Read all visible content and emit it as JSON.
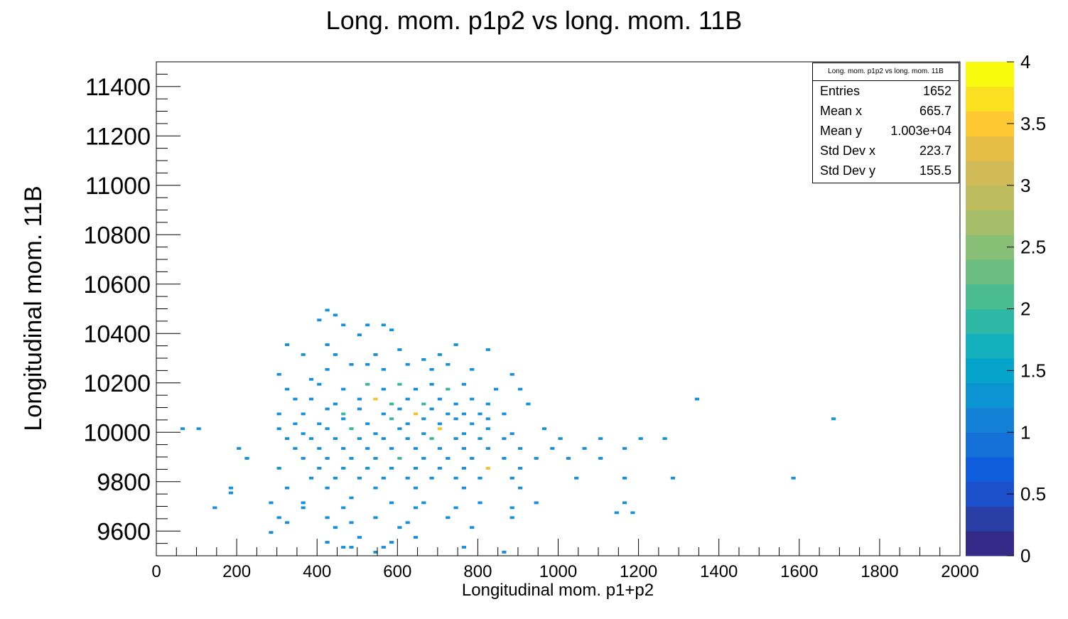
{
  "chart_data": {
    "type": "heatmap",
    "title": "Long.  mom. p1p2 vs long. mom. 11B",
    "xlabel": "Longitudinal mom. p1+p2",
    "ylabel": "Longitudinal mom. 11B",
    "xlim": [
      0,
      2000
    ],
    "ylim": [
      9500,
      11500
    ],
    "x_ticks": [
      0,
      200,
      400,
      600,
      800,
      1000,
      1200,
      1400,
      1600,
      1800,
      2000
    ],
    "y_ticks": [
      9600,
      9800,
      10000,
      10200,
      10400,
      10600,
      10800,
      11000,
      11200,
      11400
    ],
    "colorbar": {
      "min": 0,
      "max": 4,
      "ticks": [
        "0",
        "0.5",
        "1",
        "1.5",
        "2",
        "2.5",
        "3",
        "3.5",
        "4"
      ]
    },
    "stats": {
      "title": "Long.  mom. p1p2 vs long. mom. 11B",
      "rows": [
        {
          "label": "Entries",
          "value": "1652"
        },
        {
          "label": "Mean x",
          "value": "665.7"
        },
        {
          "label": "Mean y",
          "value": "1.003e+04"
        },
        {
          "label": "Std Dev x",
          "value": "223.7"
        },
        {
          "label": "Std Dev y",
          "value": "155.5"
        }
      ]
    },
    "bins": {
      "x_bin_width": 20,
      "y_bin_width": 20,
      "points": [
        [
          420,
          10480,
          1
        ],
        [
          440,
          10460,
          1
        ],
        [
          400,
          10440,
          1
        ],
        [
          460,
          10420,
          1
        ],
        [
          520,
          10420,
          1
        ],
        [
          560,
          10420,
          1
        ],
        [
          580,
          10400,
          1
        ],
        [
          500,
          10380,
          1
        ],
        [
          320,
          10340,
          1
        ],
        [
          420,
          10340,
          1
        ],
        [
          600,
          10320,
          1
        ],
        [
          740,
          10340,
          1
        ],
        [
          820,
          10320,
          1
        ],
        [
          360,
          10300,
          1
        ],
        [
          440,
          10300,
          1
        ],
        [
          540,
          10300,
          1
        ],
        [
          660,
          10280,
          1
        ],
        [
          700,
          10300,
          1
        ],
        [
          300,
          10220,
          1
        ],
        [
          380,
          10200,
          1
        ],
        [
          420,
          10240,
          1
        ],
        [
          480,
          10260,
          1
        ],
        [
          520,
          10260,
          1
        ],
        [
          560,
          10240,
          1
        ],
        [
          620,
          10260,
          1
        ],
        [
          680,
          10240,
          1
        ],
        [
          720,
          10260,
          1
        ],
        [
          780,
          10240,
          1
        ],
        [
          880,
          10220,
          1
        ],
        [
          320,
          10160,
          1
        ],
        [
          400,
          10180,
          1
        ],
        [
          460,
          10160,
          1
        ],
        [
          520,
          10180,
          2
        ],
        [
          560,
          10160,
          1
        ],
        [
          600,
          10180,
          2
        ],
        [
          640,
          10160,
          1
        ],
        [
          680,
          10180,
          1
        ],
        [
          720,
          10160,
          2
        ],
        [
          760,
          10180,
          1
        ],
        [
          840,
          10160,
          1
        ],
        [
          900,
          10160,
          1
        ],
        [
          340,
          10120,
          1
        ],
        [
          380,
          10120,
          1
        ],
        [
          440,
          10100,
          1
        ],
        [
          500,
          10120,
          1
        ],
        [
          540,
          10120,
          3
        ],
        [
          580,
          10100,
          2
        ],
        [
          620,
          10120,
          1
        ],
        [
          660,
          10100,
          2
        ],
        [
          700,
          10120,
          1
        ],
        [
          740,
          10100,
          1
        ],
        [
          780,
          10120,
          1
        ],
        [
          820,
          10100,
          1
        ],
        [
          920,
          10100,
          1
        ],
        [
          1340,
          10120,
          1
        ],
        [
          300,
          10060,
          1
        ],
        [
          360,
          10060,
          1
        ],
        [
          420,
          10080,
          1
        ],
        [
          460,
          10060,
          2
        ],
        [
          500,
          10080,
          1
        ],
        [
          560,
          10060,
          1
        ],
        [
          600,
          10080,
          1
        ],
        [
          640,
          10060,
          3
        ],
        [
          680,
          10080,
          1
        ],
        [
          720,
          10060,
          1
        ],
        [
          760,
          10060,
          1
        ],
        [
          800,
          10060,
          1
        ],
        [
          860,
          10060,
          1
        ],
        [
          340,
          10020,
          1
        ],
        [
          400,
          10020,
          1
        ],
        [
          460,
          10040,
          1
        ],
        [
          520,
          10020,
          1
        ],
        [
          580,
          10040,
          2
        ],
        [
          620,
          10020,
          1
        ],
        [
          660,
          10040,
          1
        ],
        [
          700,
          10020,
          1
        ],
        [
          740,
          10040,
          1
        ],
        [
          780,
          10020,
          1
        ],
        [
          820,
          10040,
          1
        ],
        [
          1680,
          10040,
          1
        ],
        [
          60,
          10000,
          1
        ],
        [
          100,
          10000,
          1
        ],
        [
          300,
          10000,
          1
        ],
        [
          360,
          9980,
          1
        ],
        [
          420,
          10000,
          1
        ],
        [
          480,
          10000,
          2
        ],
        [
          540,
          9980,
          1
        ],
        [
          600,
          10000,
          1
        ],
        [
          660,
          9980,
          1
        ],
        [
          700,
          10000,
          3
        ],
        [
          760,
          9980,
          1
        ],
        [
          820,
          10000,
          1
        ],
        [
          880,
          9980,
          1
        ],
        [
          960,
          10000,
          1
        ],
        [
          320,
          9960,
          1
        ],
        [
          380,
          9960,
          1
        ],
        [
          440,
          9960,
          1
        ],
        [
          500,
          9960,
          1
        ],
        [
          560,
          9960,
          1
        ],
        [
          620,
          9960,
          1
        ],
        [
          680,
          9960,
          2
        ],
        [
          740,
          9960,
          1
        ],
        [
          800,
          9960,
          1
        ],
        [
          860,
          9960,
          1
        ],
        [
          1000,
          9960,
          1
        ],
        [
          1100,
          9960,
          1
        ],
        [
          1200,
          9960,
          1
        ],
        [
          1260,
          9960,
          1
        ],
        [
          340,
          9920,
          1
        ],
        [
          400,
          9920,
          1
        ],
        [
          460,
          9920,
          1
        ],
        [
          520,
          9920,
          1
        ],
        [
          580,
          9920,
          1
        ],
        [
          640,
          9920,
          1
        ],
        [
          700,
          9920,
          1
        ],
        [
          760,
          9920,
          1
        ],
        [
          820,
          9920,
          1
        ],
        [
          900,
          9920,
          1
        ],
        [
          980,
          9920,
          1
        ],
        [
          1060,
          9920,
          1
        ],
        [
          1160,
          9920,
          1
        ],
        [
          200,
          9920,
          1
        ],
        [
          360,
          9880,
          1
        ],
        [
          420,
          9880,
          1
        ],
        [
          480,
          9880,
          1
        ],
        [
          540,
          9880,
          1
        ],
        [
          600,
          9880,
          2
        ],
        [
          660,
          9880,
          1
        ],
        [
          720,
          9880,
          1
        ],
        [
          780,
          9880,
          1
        ],
        [
          860,
          9880,
          1
        ],
        [
          940,
          9880,
          1
        ],
        [
          1020,
          9880,
          1
        ],
        [
          1100,
          9880,
          1
        ],
        [
          220,
          9880,
          1
        ],
        [
          300,
          9840,
          1
        ],
        [
          400,
          9840,
          1
        ],
        [
          460,
          9840,
          1
        ],
        [
          520,
          9840,
          1
        ],
        [
          580,
          9840,
          1
        ],
        [
          640,
          9840,
          1
        ],
        [
          700,
          9840,
          1
        ],
        [
          760,
          9840,
          1
        ],
        [
          820,
          9840,
          3
        ],
        [
          900,
          9840,
          1
        ],
        [
          380,
          9800,
          1
        ],
        [
          440,
          9800,
          1
        ],
        [
          500,
          9800,
          1
        ],
        [
          560,
          9800,
          1
        ],
        [
          620,
          9800,
          1
        ],
        [
          680,
          9800,
          1
        ],
        [
          740,
          9800,
          1
        ],
        [
          800,
          9800,
          1
        ],
        [
          880,
          9800,
          1
        ],
        [
          1040,
          9800,
          1
        ],
        [
          1160,
          9800,
          1
        ],
        [
          1280,
          9800,
          1
        ],
        [
          1580,
          9800,
          1
        ],
        [
          180,
          9760,
          1
        ],
        [
          320,
          9760,
          1
        ],
        [
          420,
          9760,
          1
        ],
        [
          540,
          9760,
          1
        ],
        [
          640,
          9760,
          1
        ],
        [
          760,
          9760,
          1
        ],
        [
          900,
          9760,
          1
        ],
        [
          180,
          9740,
          1
        ],
        [
          280,
          9700,
          1
        ],
        [
          360,
          9700,
          1
        ],
        [
          480,
          9720,
          1
        ],
        [
          580,
          9700,
          1
        ],
        [
          660,
          9700,
          1
        ],
        [
          800,
          9700,
          1
        ],
        [
          940,
          9700,
          1
        ],
        [
          1160,
          9700,
          1
        ],
        [
          140,
          9680,
          1
        ],
        [
          360,
          9680,
          1
        ],
        [
          460,
          9680,
          1
        ],
        [
          640,
          9680,
          1
        ],
        [
          740,
          9680,
          1
        ],
        [
          880,
          9680,
          1
        ],
        [
          1140,
          9660,
          1
        ],
        [
          1180,
          9660,
          1
        ],
        [
          300,
          9640,
          1
        ],
        [
          420,
          9640,
          1
        ],
        [
          540,
          9640,
          1
        ],
        [
          720,
          9640,
          1
        ],
        [
          880,
          9640,
          1
        ],
        [
          320,
          9620,
          1
        ],
        [
          480,
          9620,
          1
        ],
        [
          620,
          9620,
          1
        ],
        [
          440,
          9600,
          1
        ],
        [
          600,
          9600,
          1
        ],
        [
          780,
          9600,
          1
        ],
        [
          280,
          9580,
          1
        ],
        [
          500,
          9560,
          1
        ],
        [
          640,
          9560,
          1
        ],
        [
          420,
          9540,
          1
        ],
        [
          580,
          9540,
          1
        ],
        [
          460,
          9520,
          1
        ],
        [
          560,
          9520,
          1
        ],
        [
          480,
          9520,
          1
        ],
        [
          760,
          9520,
          1
        ],
        [
          860,
          9500,
          1
        ],
        [
          540,
          9500,
          1
        ]
      ]
    }
  }
}
